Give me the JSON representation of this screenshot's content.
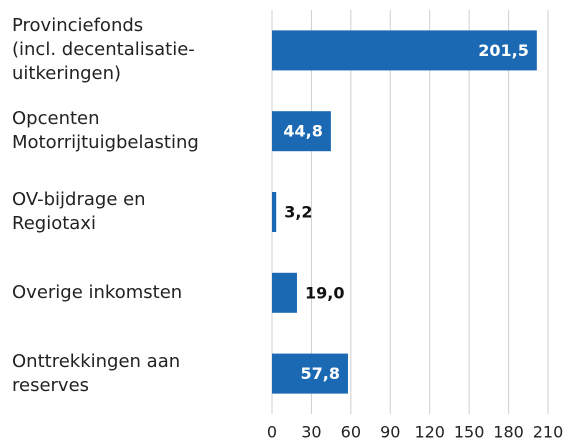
{
  "chart_data": {
    "type": "hbar",
    "categories": [
      "Provinciefonds\n(incl. decentalisatie-\nuitkeringen)",
      "Opcenten\nMotorrijtuigbelasting",
      "OV-bijdrage en\nRegiotaxi",
      "Overige inkomsten",
      "Onttrekkingen aan\nreserves"
    ],
    "values": [
      201.5,
      44.8,
      3.2,
      19.0,
      57.8
    ],
    "value_labels": [
      "201,5",
      "44,8",
      "3,2",
      "19,0",
      "57,8"
    ],
    "color": "#1b68b3",
    "xlim": [
      0,
      210
    ],
    "xticks": [
      0,
      30,
      60,
      90,
      120,
      150,
      180,
      210
    ],
    "grid": true
  }
}
